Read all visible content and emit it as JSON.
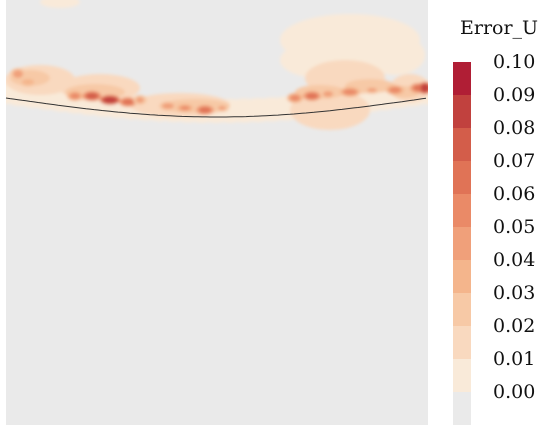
{
  "chart_data": {
    "type": "heatmap",
    "colorbar": {
      "title": "Error_U",
      "range": [
        0.0,
        0.1
      ],
      "ticks": [
        "0.10",
        "0.09",
        "0.08",
        "0.07",
        "0.06",
        "0.05",
        "0.04",
        "0.03",
        "0.02",
        "0.01",
        "0.00"
      ],
      "levels": [
        0.0,
        0.01,
        0.02,
        0.03,
        0.04,
        0.05,
        0.06,
        0.07,
        0.08,
        0.09,
        0.1
      ],
      "colors": [
        "#eaeaea",
        "#f9ead9",
        "#f9d9bf",
        "#f7c9a6",
        "#f4b58c",
        "#f0a07a",
        "#ea8a67",
        "#e07356",
        "#d35d4a",
        "#c1413e",
        "#b01e35"
      ]
    },
    "interface_line": {
      "color": "#333333"
    }
  }
}
